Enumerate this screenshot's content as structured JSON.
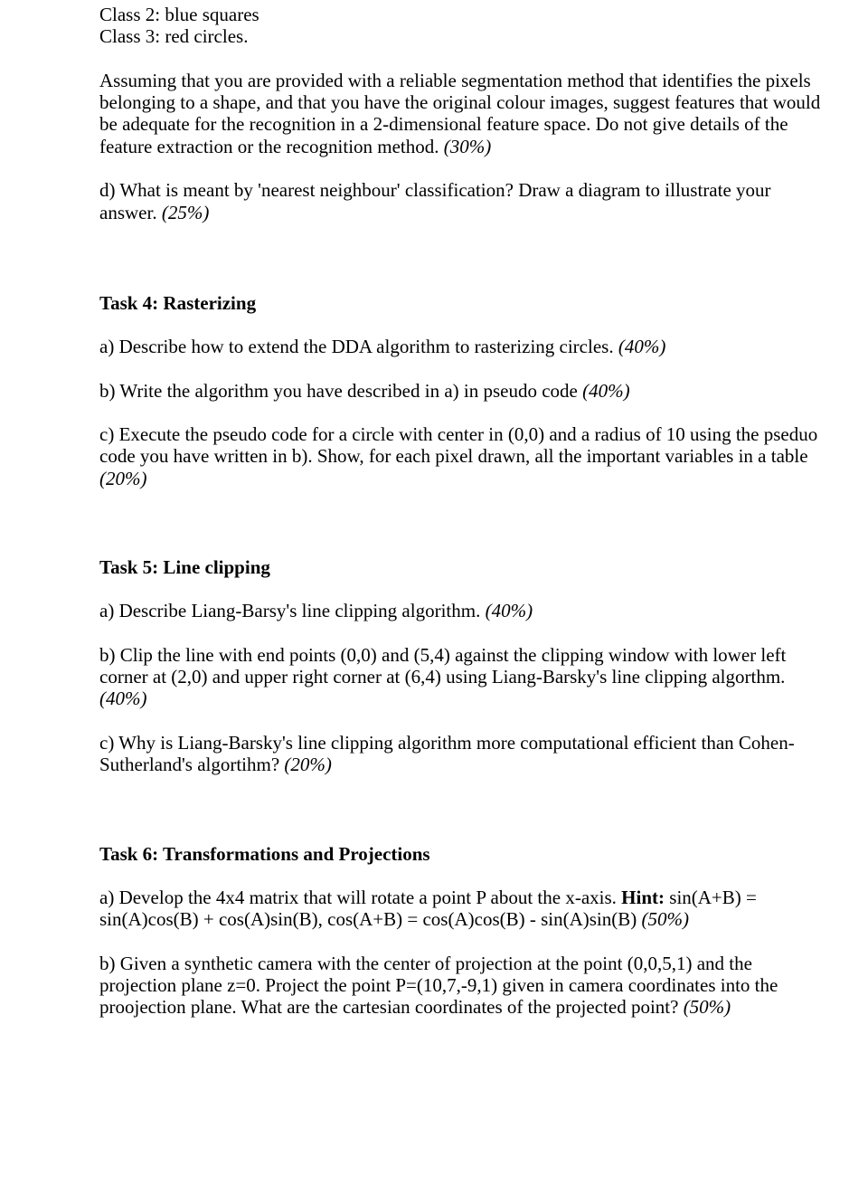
{
  "intro": {
    "line1": "Class 2: blue squares",
    "line2": "Class 3: red circles.",
    "para": "Assuming that you are provided with a reliable segmentation method that identifies the pixels belonging to a shape, and that you have the original colour images, suggest features that would be adequate for the recognition in a 2-dimensional feature space. Do not give details of the feature extraction or the recognition method. ",
    "para_pct": "(30%)",
    "d_text": "d) What is meant by 'nearest neighbour' classification?  Draw a diagram to illustrate your answer. ",
    "d_pct": "(25%)"
  },
  "task4": {
    "title": "Task 4: Rasterizing",
    "a": "a) Describe how to extend the DDA algorithm to rasterizing circles. ",
    "a_pct": "(40%)",
    "b": "b) Write the algorithm you have described in a) in pseudo code ",
    "b_pct": "(40%)",
    "c": "c) Execute the pseudo code for a circle with center in (0,0) and a radius of 10 using the pseduo code you have written in b). Show, for each pixel drawn, all the important variables in a table ",
    "c_pct": "(20%)"
  },
  "task5": {
    "title": "Task 5: Line clipping",
    "a": "a) Describe Liang-Barsy's line clipping algorithm. ",
    "a_pct": "(40%)",
    "b": "b) Clip the line with end points (0,0) and (5,4) against the clipping window with lower left corner at (2,0) and upper right corner at (6,4) using Liang-Barsky's line clipping algorthm. ",
    "b_pct": "(40%)",
    "c": "c) Why is Liang-Barsky's line clipping algorithm more computational efficient than Cohen-Sutherland's algortihm? ",
    "c_pct": "(20%)"
  },
  "task6": {
    "title": "Task 6: Transformations and Projections",
    "a_pre": "a) Develop the 4x4 matrix that will rotate a point P about the x-axis. ",
    "a_hint_label": "Hint:",
    "a_post": " sin(A+B) = sin(A)cos(B) + cos(A)sin(B), cos(A+B) = cos(A)cos(B) - sin(A)sin(B) ",
    "a_pct": "(50%)",
    "b": "b) Given a synthetic camera with the center of projection at the point (0,0,5,1) and the projection plane z=0. Project the point P=(10,7,-9,1) given in camera coordinates into the proojection plane. What are the cartesian coordinates of the projected point? ",
    "b_pct": "(50%)"
  }
}
